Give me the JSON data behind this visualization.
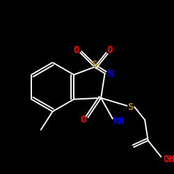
{
  "bg_color": "#000000",
  "bond_color": "#ffffff",
  "figsize": [
    2.5,
    2.5
  ],
  "dpi": 100,
  "colors": {
    "O": "#ff0000",
    "N": "#0000ff",
    "S": "#b8860b",
    "C": "#ffffff"
  }
}
